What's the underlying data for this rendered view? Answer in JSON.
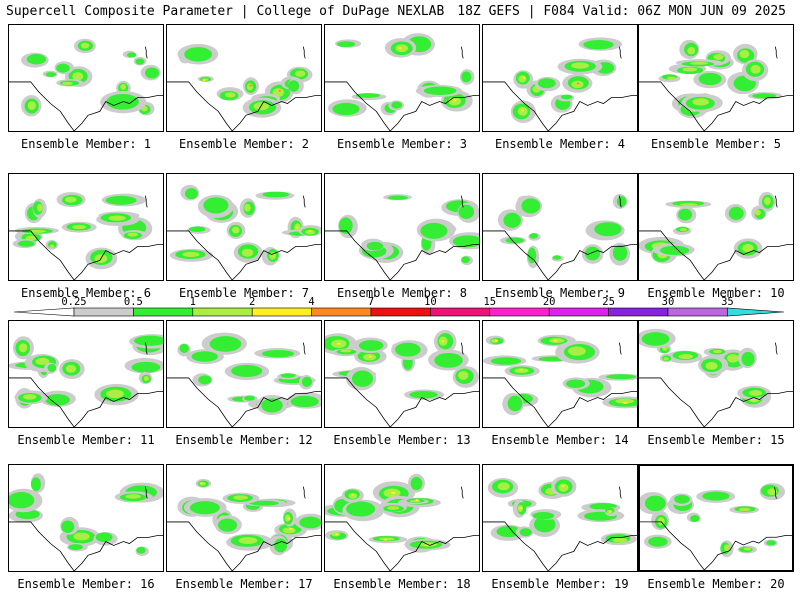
{
  "header": {
    "title_left": "Supercell Composite Parameter | College of DuPage NEXLAB",
    "title_right": "18Z GEFS | F084 Valid: 06Z MON JUN 09 2025"
  },
  "legend": {
    "ticks": [
      "0.25",
      "0.5",
      "1",
      "2",
      "4",
      "7",
      "10",
      "15",
      "20",
      "25",
      "30",
      "35"
    ],
    "colors": [
      "#ffffff",
      "#cccccc",
      "#33ee33",
      "#aaee44",
      "#ffee22",
      "#ff8822",
      "#ee1111",
      "#ee1177",
      "#ff22cc",
      "#dd22ee",
      "#8822dd",
      "#bb66dd",
      "#33dddd"
    ]
  },
  "members": [
    {
      "label": "Ensemble Member: 1",
      "intensity": 3
    },
    {
      "label": "Ensemble Member: 2",
      "intensity": 5
    },
    {
      "label": "Ensemble Member: 3",
      "intensity": 4
    },
    {
      "label": "Ensemble Member: 4",
      "intensity": 5
    },
    {
      "label": "Ensemble Member: 5",
      "intensity": 3
    },
    {
      "label": "Ensemble Member: 6",
      "intensity": 3
    },
    {
      "label": "Ensemble Member: 7",
      "intensity": 4
    },
    {
      "label": "Ensemble Member: 8",
      "intensity": 2
    },
    {
      "label": "Ensemble Member: 9",
      "intensity": 2
    },
    {
      "label": "Ensemble Member: 10",
      "intensity": 3
    },
    {
      "label": "Ensemble Member: 11",
      "intensity": 3
    },
    {
      "label": "Ensemble Member: 12",
      "intensity": 2
    },
    {
      "label": "Ensemble Member: 13",
      "intensity": 4
    },
    {
      "label": "Ensemble Member: 14",
      "intensity": 4
    },
    {
      "label": "Ensemble Member: 15",
      "intensity": 3
    },
    {
      "label": "Ensemble Member: 16",
      "intensity": 3
    },
    {
      "label": "Ensemble Member: 17",
      "intensity": 4
    },
    {
      "label": "Ensemble Member: 18",
      "intensity": 4
    },
    {
      "label": "Ensemble Member: 19",
      "intensity": 4
    },
    {
      "label": "Ensemble Member: 20",
      "intensity": 3
    }
  ]
}
